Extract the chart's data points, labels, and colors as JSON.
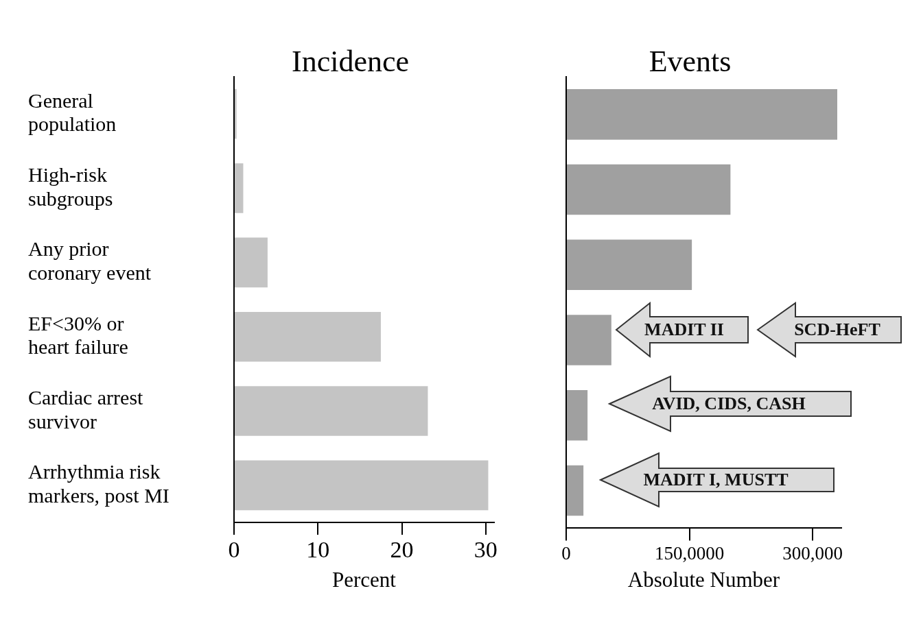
{
  "chart_data": [
    {
      "type": "bar",
      "title": "Incidence",
      "orientation": "horizontal",
      "tick_labels": "xy",
      "categories": [
        "General population",
        "High-risk subgroups",
        "Any prior coronary event",
        "EF<30% or heart failure",
        "Cardiac arrest survivor",
        "Arrhythmia risk markers, post MI"
      ],
      "values": [
        0.3,
        1.1,
        4.0,
        17.5,
        23.1,
        30.3
      ],
      "color": "#c4c4c4",
      "xlim": [
        0,
        31
      ],
      "xticks": [
        0,
        10,
        20,
        30
      ],
      "xlabel": "Percent"
    },
    {
      "type": "bar",
      "title": "Events",
      "orientation": "horizontal",
      "tick_labels": "x",
      "categories": [
        null,
        null,
        null,
        null,
        null,
        null
      ],
      "values": [
        330000,
        200000,
        153000,
        55000,
        26000,
        21000
      ],
      "color": "#a0a0a0",
      "xlim": [
        0,
        335000
      ],
      "xticks": [
        0,
        {
          "value": 150000,
          "label": "150,0000"
        },
        {
          "value": 300000,
          "label": "300,000"
        }
      ],
      "xlabel": "Absolute Number",
      "annotations": [
        "MADIT II",
        "SCD-HeFT",
        "AVID, CIDS, CASH",
        "MADIT I, MUSTT"
      ]
    }
  ]
}
